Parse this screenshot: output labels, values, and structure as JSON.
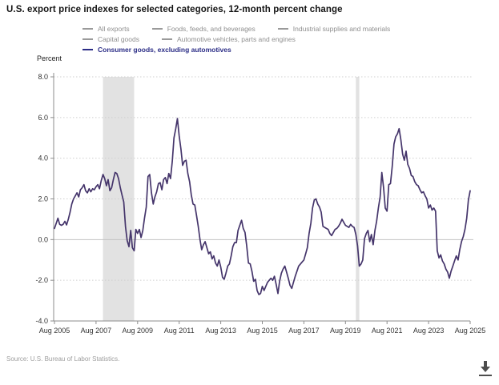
{
  "title": "U.S. export price indexes for selected categories, 12-month percent change",
  "y_axis_unit": "Percent",
  "source_note": "Source: U.S. Bureau of Labor Statistics.",
  "colors": {
    "line": "#45356b",
    "legend_active": "#2b2d86",
    "legend_inactive": "#8f8f8f",
    "recession_band": "#e2e2e2",
    "grid_dotted": "#cfcfcf",
    "zero_line": "#c2c2c2",
    "axis": "#8c8c8c",
    "tick_label": "#333333"
  },
  "legend": {
    "rows": [
      [
        {
          "label": "All exports",
          "active": false
        },
        {
          "label": "Foods, feeds, and beverages",
          "active": false
        },
        {
          "label": "Industrial supplies and materials",
          "active": false
        }
      ],
      [
        {
          "label": "Capital goods",
          "active": false
        },
        {
          "label": "Automotive vehicles, parts and engines",
          "active": false
        }
      ],
      [
        {
          "label": "Consumer goods, excluding automotives",
          "active": true
        }
      ]
    ]
  },
  "download": {
    "label": "download-chart"
  },
  "chart_data": {
    "type": "line",
    "title": "U.S. export price indexes for selected categories, 12-month percent change",
    "xlabel": "",
    "ylabel": "Percent",
    "ylim": [
      -4.0,
      8.0
    ],
    "y_ticks": [
      8.0,
      6.0,
      4.0,
      2.0,
      0.0,
      -2.0,
      -4.0
    ],
    "grid": "horizontal-dotted",
    "legend_position": "top",
    "frequency": "monthly",
    "x_start_label": "Aug 2005",
    "x_end_label": "Aug 2025",
    "x_tick_every_months": 24,
    "x_tick_labels": [
      "Aug 2005",
      "Aug 2007",
      "Aug 2009",
      "Aug 2011",
      "Aug 2013",
      "Aug 2015",
      "Aug 2017",
      "Aug 2019",
      "Aug 2021",
      "Aug 2023",
      "Aug 2025"
    ],
    "recession_bands": [
      {
        "start_index": 28,
        "end_index": 46,
        "note": "Dec 2007 - Jun 2009 shading"
      },
      {
        "start_index": 174,
        "end_index": 176,
        "note": "Feb 2020 - Apr 2020 shading"
      }
    ],
    "inactive_series_names": [
      "All exports",
      "Foods, feeds, and beverages",
      "Industrial supplies and materials",
      "Capital goods",
      "Automotive vehicles, parts and engines"
    ],
    "series": [
      {
        "name": "Consumer goods, excluding automotives",
        "color": "#45356b",
        "values": [
          0.55,
          0.8,
          1.05,
          0.75,
          0.7,
          0.75,
          0.9,
          0.72,
          1.0,
          1.35,
          1.75,
          2.0,
          2.15,
          2.3,
          2.1,
          2.45,
          2.55,
          2.7,
          2.4,
          2.3,
          2.5,
          2.35,
          2.5,
          2.45,
          2.6,
          2.7,
          2.5,
          2.9,
          3.2,
          3.0,
          2.65,
          2.95,
          2.4,
          2.55,
          2.95,
          3.3,
          3.25,
          3.0,
          2.55,
          2.2,
          1.85,
          0.63,
          -0.05,
          -0.35,
          0.45,
          -0.4,
          -0.55,
          0.5,
          0.3,
          0.5,
          0.1,
          0.45,
          1.05,
          1.6,
          3.1,
          3.2,
          2.3,
          1.75,
          2.1,
          2.35,
          2.75,
          2.8,
          2.45,
          2.95,
          3.05,
          2.75,
          3.25,
          3.0,
          3.85,
          5.0,
          5.45,
          5.95,
          5.1,
          4.45,
          3.65,
          3.85,
          3.9,
          3.25,
          2.85,
          2.2,
          1.75,
          1.7,
          1.2,
          0.65,
          0.0,
          -0.5,
          -0.25,
          -0.1,
          -0.4,
          -0.7,
          -0.6,
          -0.95,
          -0.8,
          -1.15,
          -1.3,
          -1.0,
          -1.35,
          -1.85,
          -1.95,
          -1.65,
          -1.3,
          -1.2,
          -0.8,
          -0.35,
          -0.15,
          -0.15,
          0.45,
          0.7,
          0.95,
          0.55,
          0.35,
          -0.3,
          -1.15,
          -1.2,
          -1.55,
          -2.05,
          -1.95,
          -2.5,
          -2.7,
          -2.65,
          -2.3,
          -2.5,
          -2.3,
          -2.1,
          -2.0,
          -1.9,
          -2.0,
          -1.8,
          -2.2,
          -2.65,
          -2.05,
          -1.65,
          -1.45,
          -1.3,
          -1.6,
          -1.9,
          -2.25,
          -2.4,
          -2.1,
          -1.8,
          -1.55,
          -1.3,
          -1.2,
          -1.1,
          -1.0,
          -0.7,
          -0.4,
          0.3,
          0.8,
          1.55,
          1.95,
          2.0,
          1.75,
          1.6,
          1.35,
          0.65,
          0.6,
          0.55,
          0.5,
          0.3,
          0.2,
          0.35,
          0.5,
          0.55,
          0.65,
          0.8,
          1.0,
          0.85,
          0.7,
          0.65,
          0.6,
          0.75,
          0.65,
          0.6,
          0.25,
          -0.3,
          -1.3,
          -1.2,
          -1.0,
          0.05,
          0.3,
          0.45,
          -0.1,
          0.25,
          -0.25,
          0.45,
          0.9,
          1.55,
          2.1,
          3.3,
          2.55,
          1.55,
          1.4,
          2.7,
          2.75,
          3.6,
          4.7,
          5.05,
          5.2,
          5.45,
          4.9,
          4.2,
          3.9,
          4.35,
          3.7,
          3.5,
          3.15,
          3.1,
          2.85,
          2.7,
          2.65,
          2.45,
          2.3,
          2.35,
          2.15,
          2.0,
          1.55,
          1.7,
          1.45,
          1.55,
          1.4,
          -0.55,
          -0.9,
          -0.75,
          -1.05,
          -1.2,
          -1.45,
          -1.6,
          -1.9,
          -1.55,
          -1.3,
          -1.05,
          -0.8,
          -1.0,
          -0.5,
          -0.1,
          0.15,
          0.5,
          1.05,
          1.95,
          2.4
        ]
      }
    ]
  }
}
